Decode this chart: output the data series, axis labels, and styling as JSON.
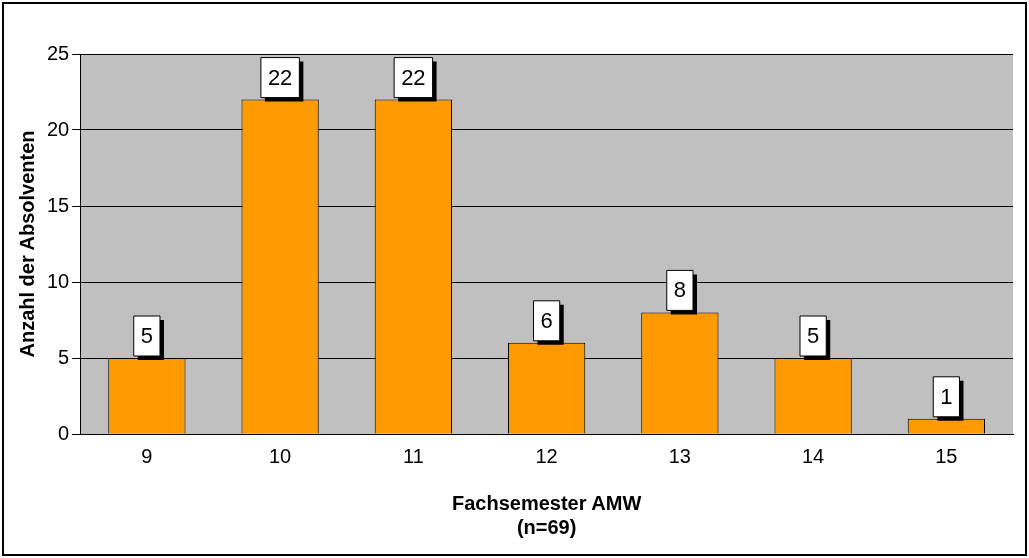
{
  "chart_data": {
    "type": "bar",
    "xlabel": "Fachsemester AMW\n(n=69)",
    "ylabel": "Anzahl der Absolventen",
    "categories": [
      "9",
      "10",
      "11",
      "12",
      "13",
      "14",
      "15"
    ],
    "values": [
      5,
      22,
      22,
      6,
      8,
      5,
      1
    ],
    "color": "#ff9900",
    "ylim": [
      0,
      25
    ],
    "yticks": [
      0,
      5,
      10,
      15,
      20,
      25
    ],
    "grid": "y",
    "data_labels": true,
    "legend": false
  }
}
